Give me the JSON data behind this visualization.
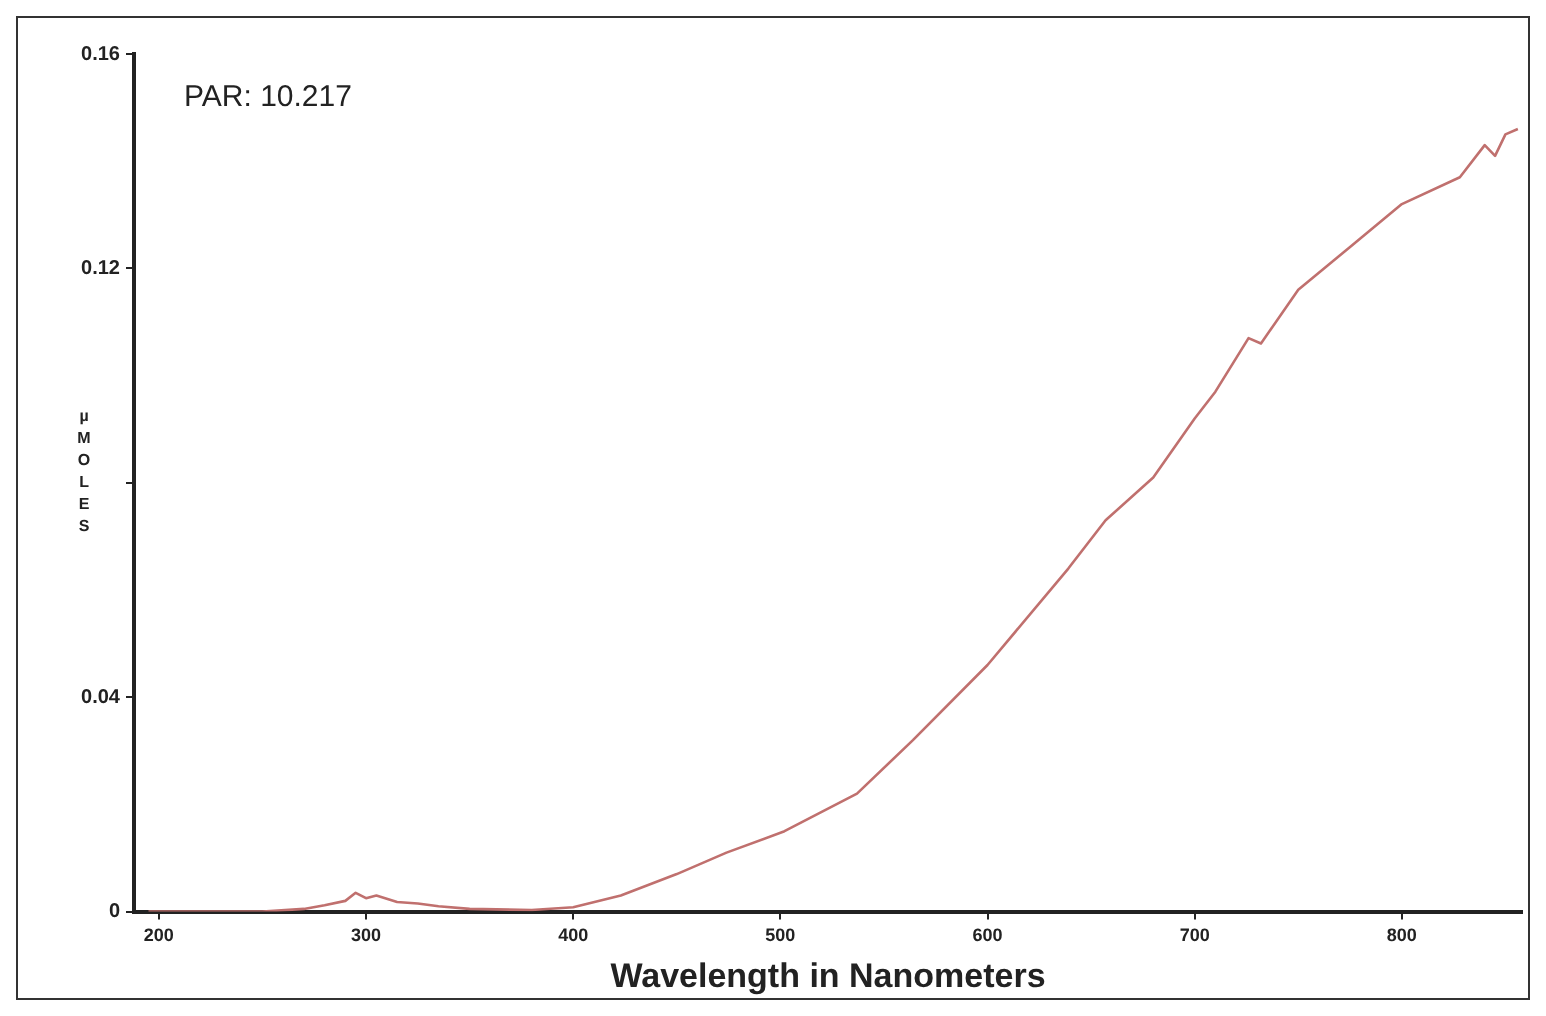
{
  "chart_data": {
    "type": "line",
    "xlabel": "Wavelength in Nanometers",
    "ylabel": "µMOLES",
    "annotations": [
      "PAR: 10.217"
    ],
    "xlim": [
      188,
      858
    ],
    "xticks": [
      200,
      300,
      400,
      500,
      600,
      700,
      800
    ],
    "ylim": [
      0,
      0.16
    ],
    "yticks": [
      0,
      0.04,
      {
        "value": 0.08,
        "label": null
      },
      0.12,
      0.16
    ],
    "grid": false,
    "legend": false,
    "marker": "none",
    "line_style": "solid",
    "series": [
      {
        "color": "#c0706e",
        "x": [
          195,
          200,
          250,
          270,
          280,
          290,
          295,
          300,
          305,
          315,
          325,
          335,
          350,
          380,
          400,
          423,
          450,
          474,
          502,
          537,
          564,
          600,
          639,
          657,
          680,
          700,
          710,
          726,
          732,
          750,
          775,
          800,
          828,
          840,
          845,
          850,
          856
        ],
        "values": [
          0,
          0,
          0,
          0.0005,
          0.0012,
          0.002,
          0.0035,
          0.0025,
          0.003,
          0.0018,
          0.0015,
          0.001,
          0.0005,
          0.0003,
          0.0008,
          0.003,
          0.007,
          0.011,
          0.015,
          0.022,
          0.032,
          0.046,
          0.064,
          0.073,
          0.081,
          0.092,
          0.097,
          0.107,
          0.106,
          0.116,
          0.124,
          0.132,
          0.137,
          0.143,
          0.141,
          0.145,
          0.146
        ]
      }
    ]
  }
}
